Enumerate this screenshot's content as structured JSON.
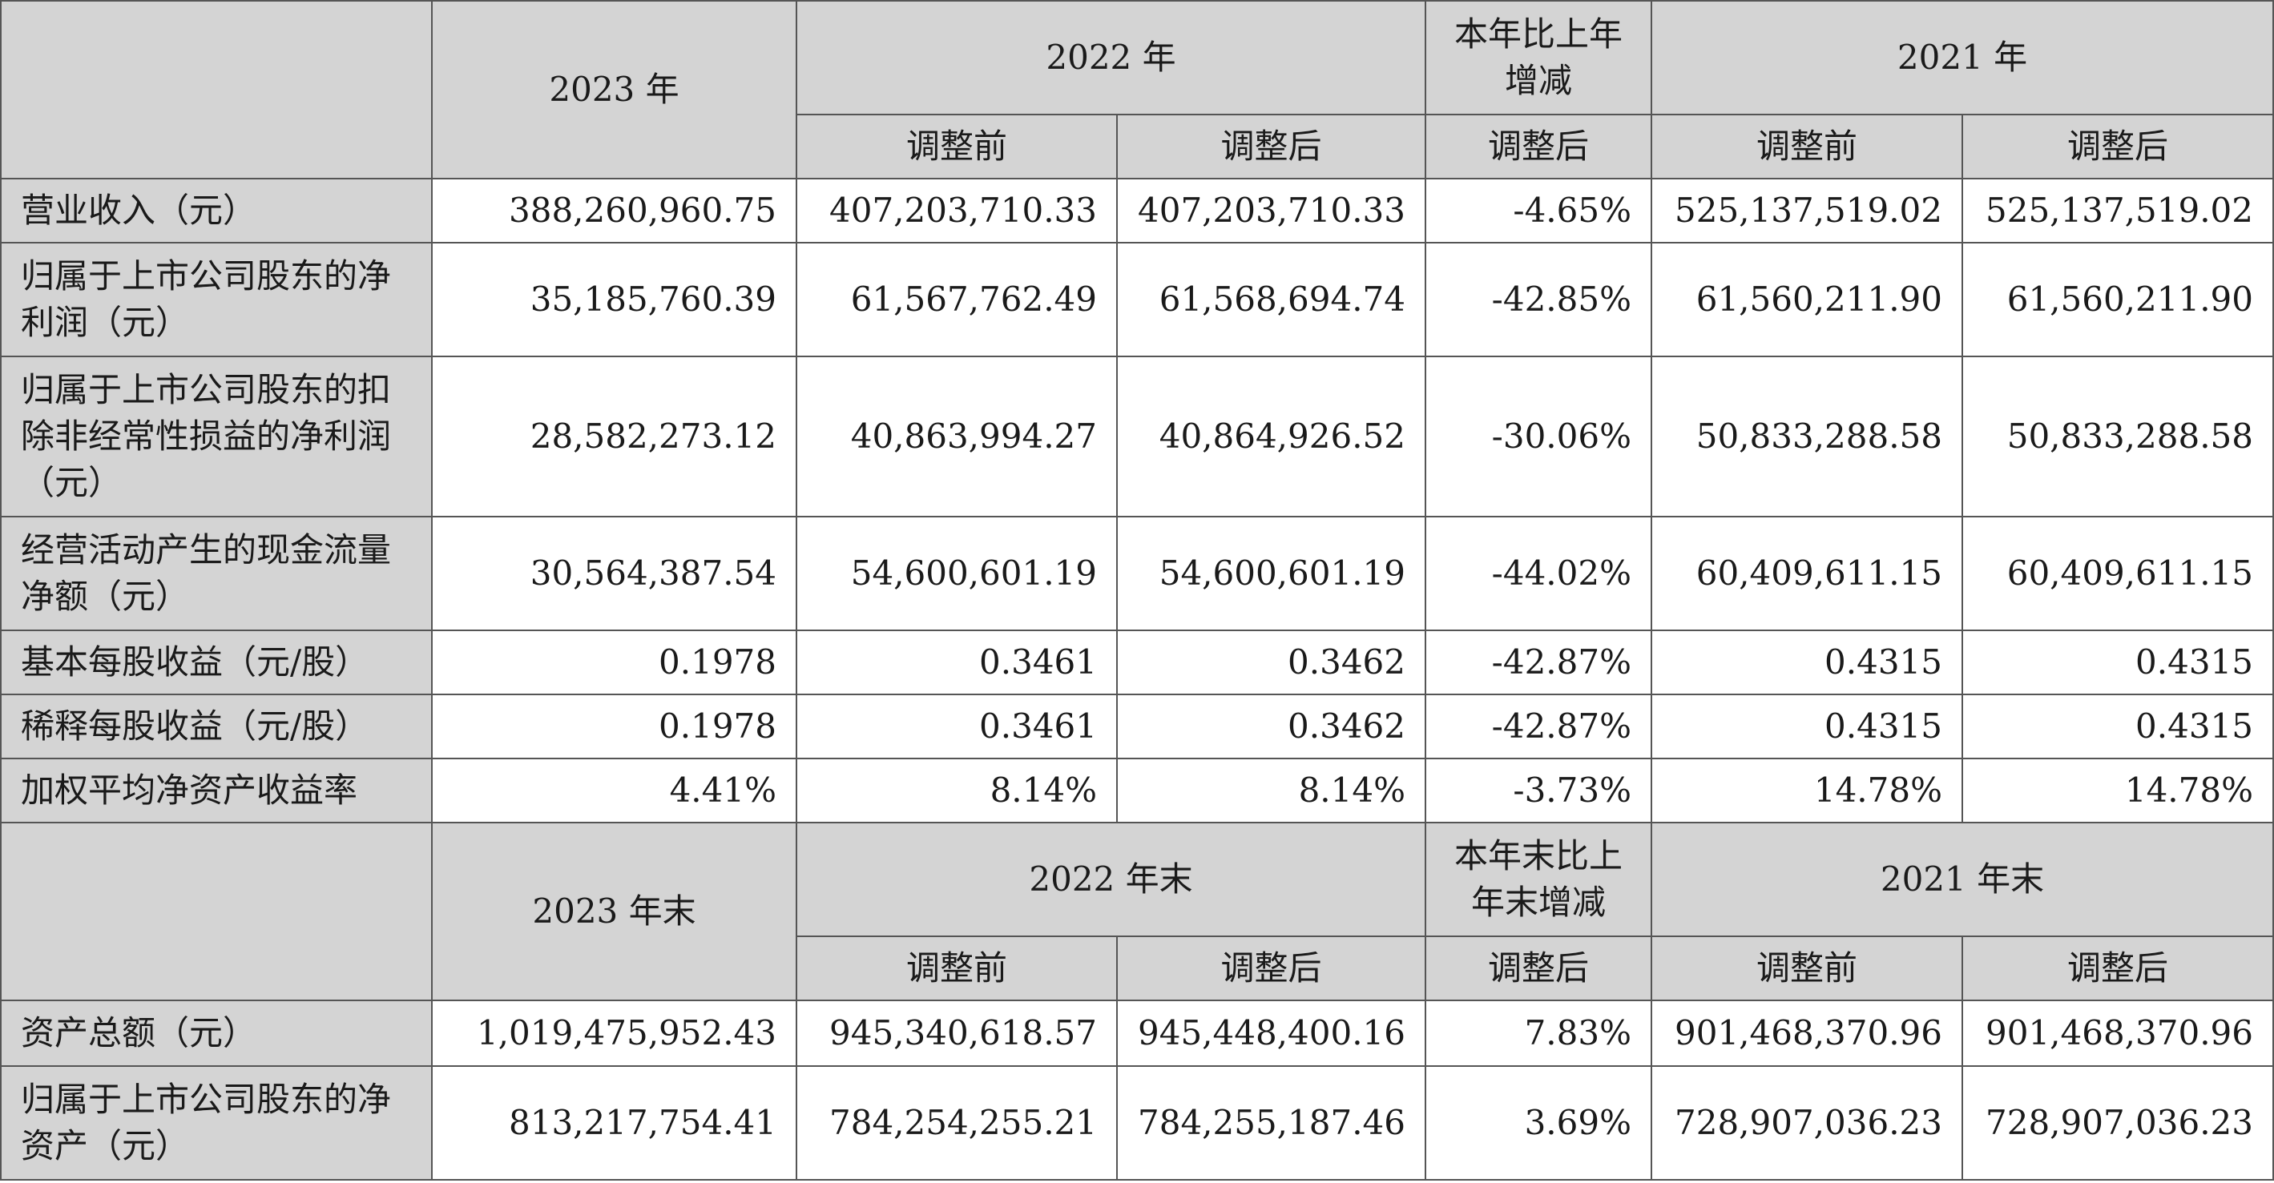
{
  "header1": {
    "col_current": "2023 年",
    "col_prev": "2022 年",
    "col_change": "本年比上年增减",
    "col_prev2": "2021 年",
    "before": "调整前",
    "after": "调整后"
  },
  "rows1": [
    {
      "label": "营业收入（元）",
      "v": [
        "388,260,960.75",
        "407,203,710.33",
        "407,203,710.33",
        "-4.65%",
        "525,137,519.02",
        "525,137,519.02"
      ]
    },
    {
      "label": "归属于上市公司股东的净利润（元）",
      "v": [
        "35,185,760.39",
        "61,567,762.49",
        "61,568,694.74",
        "-42.85%",
        "61,560,211.90",
        "61,560,211.90"
      ]
    },
    {
      "label": "归属于上市公司股东的扣除非经常性损益的净利润（元）",
      "v": [
        "28,582,273.12",
        "40,863,994.27",
        "40,864,926.52",
        "-30.06%",
        "50,833,288.58",
        "50,833,288.58"
      ]
    },
    {
      "label": "经营活动产生的现金流量净额（元）",
      "v": [
        "30,564,387.54",
        "54,600,601.19",
        "54,600,601.19",
        "-44.02%",
        "60,409,611.15",
        "60,409,611.15"
      ]
    },
    {
      "label": "基本每股收益（元/股）",
      "v": [
        "0.1978",
        "0.3461",
        "0.3462",
        "-42.87%",
        "0.4315",
        "0.4315"
      ]
    },
    {
      "label": "稀释每股收益（元/股）",
      "v": [
        "0.1978",
        "0.3461",
        "0.3462",
        "-42.87%",
        "0.4315",
        "0.4315"
      ]
    },
    {
      "label": "加权平均净资产收益率",
      "v": [
        "4.41%",
        "8.14%",
        "8.14%",
        "-3.73%",
        "14.78%",
        "14.78%"
      ]
    }
  ],
  "header2": {
    "col_current": "2023 年末",
    "col_prev": "2022 年末",
    "col_change": "本年末比上年末增减",
    "col_prev2": "2021 年末",
    "before": "调整前",
    "after": "调整后"
  },
  "rows2": [
    {
      "label": "资产总额（元）",
      "v": [
        "1,019,475,952.43",
        "945,340,618.57",
        "945,448,400.16",
        "7.83%",
        "901,468,370.96",
        "901,468,370.96"
      ]
    },
    {
      "label": "归属于上市公司股东的净资产（元）",
      "v": [
        "813,217,754.41",
        "784,254,255.21",
        "784,255,187.46",
        "3.69%",
        "728,907,036.23",
        "728,907,036.23"
      ]
    }
  ]
}
